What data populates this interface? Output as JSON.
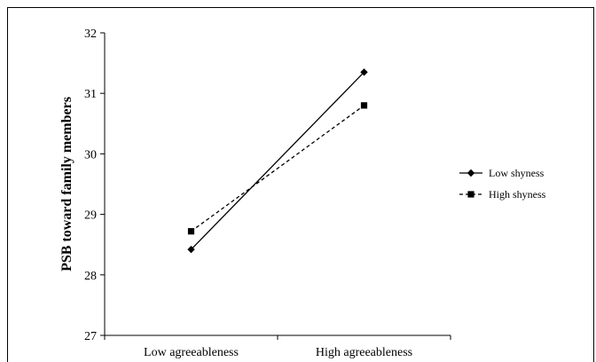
{
  "chart_data": {
    "type": "line",
    "title": "",
    "xlabel": "",
    "ylabel": "PSB toward family members",
    "categories": [
      "Low agreeableness",
      "High agreeableness"
    ],
    "ylim": [
      27,
      32
    ],
    "yticks": [
      27,
      28,
      29,
      30,
      31,
      32
    ],
    "grid": false,
    "legend_position": "right",
    "series": [
      {
        "name": "Low shyness",
        "values": [
          28.42,
          31.35
        ],
        "marker": "diamond",
        "line_style": "solid",
        "color": "#000000"
      },
      {
        "name": "High shyness",
        "values": [
          28.72,
          30.8
        ],
        "marker": "square",
        "line_style": "dashed",
        "color": "#000000"
      }
    ]
  }
}
